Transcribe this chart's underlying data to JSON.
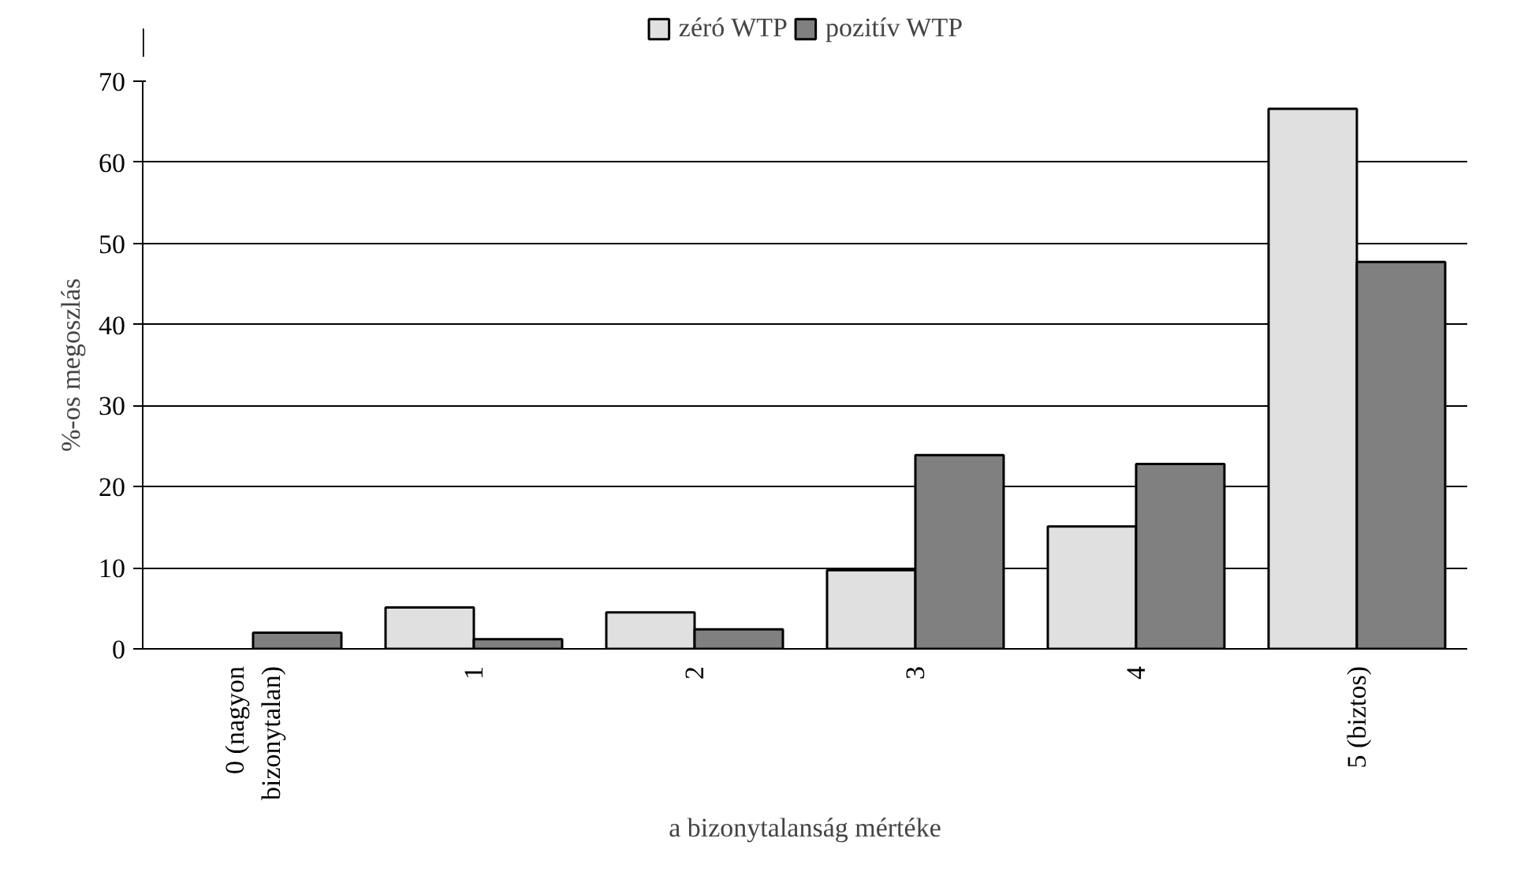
{
  "chart_data": {
    "type": "bar",
    "xlabel": "a bizonytalanság mértéke",
    "ylabel": "%-os megoszlás",
    "categories": [
      "0 (nagyon\nbizonytalan)",
      "1",
      "2",
      "3",
      "4",
      "5 (biztos)"
    ],
    "series": [
      {
        "name": "zéró WTP",
        "color": "#e0e0e0",
        "values": [
          null,
          5.1,
          4.5,
          9.7,
          15.1,
          66.6
        ]
      },
      {
        "name": "pozitív WTP",
        "color": "#808080",
        "values": [
          2.0,
          1.2,
          2.4,
          23.9,
          22.8,
          47.7
        ]
      }
    ],
    "ylim": [
      0,
      70
    ],
    "yticks": [
      0,
      10,
      20,
      30,
      40,
      50,
      60,
      70
    ],
    "grid": "y",
    "legend": "top"
  }
}
